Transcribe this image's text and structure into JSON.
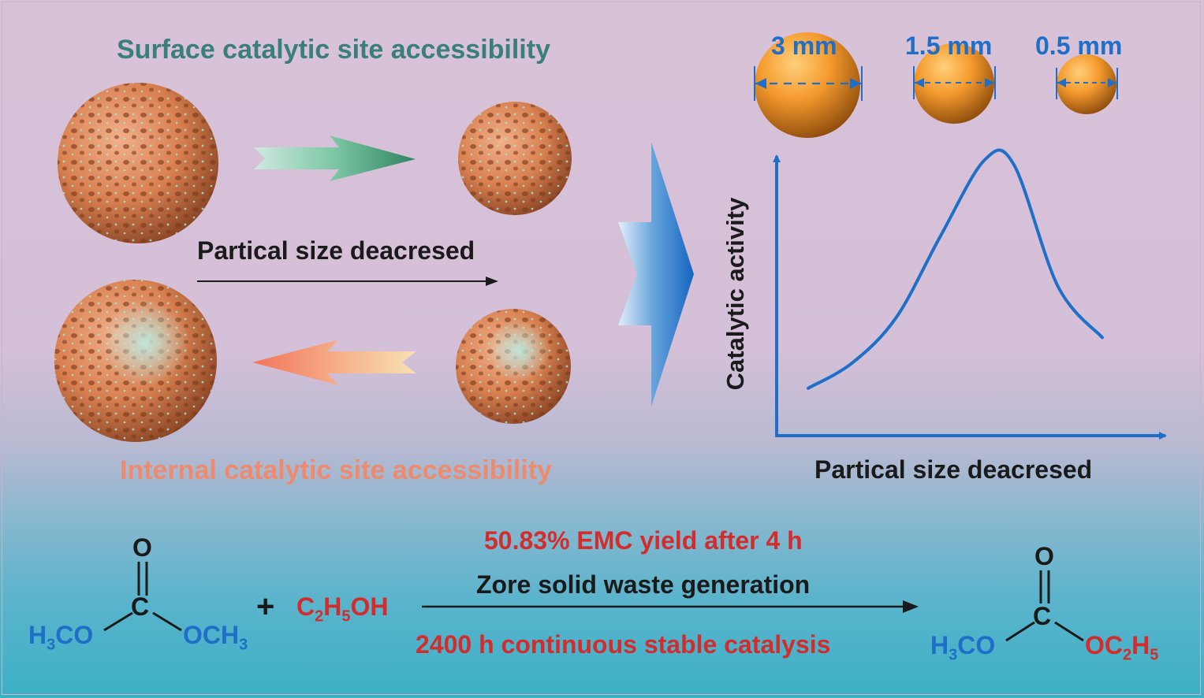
{
  "top_label": "Surface catalytic site accessibility",
  "bottom_label": "Internal catalytic site accessibility",
  "middle_arrow_label": "Partical size deacresed",
  "spheres": [
    {
      "size_label": "3 mm"
    },
    {
      "size_label": "1.5 mm"
    },
    {
      "size_label": "0.5 mm"
    }
  ],
  "chart_data": {
    "type": "line",
    "title": "",
    "xlabel": "Partical size deacresed",
    "ylabel": "Catalytic activity",
    "series": [
      {
        "name": "Catalytic activity",
        "x": [
          0,
          0.15,
          0.3,
          0.45,
          0.6,
          0.7,
          0.85,
          1.0
        ],
        "values": [
          0.1,
          0.2,
          0.38,
          0.7,
          1.0,
          0.98,
          0.5,
          0.3
        ]
      }
    ],
    "ticks": "none"
  },
  "reaction": {
    "reactant1": {
      "top": "O",
      "mid": "C",
      "left": "H",
      "left_sub": "3",
      "left_tail": "CO",
      "right": "OCH",
      "right_sub": "3"
    },
    "plus": "+",
    "reactant2": {
      "c": "C",
      "c_sub": "2",
      "h": "H",
      "h_sub": "5",
      "oh": "OH"
    },
    "line1": "50.83% EMC yield after 4 h",
    "line2": "Zore solid waste generation",
    "line3": "2400 h continuous stable catalysis",
    "product": {
      "top": "O",
      "mid": "C",
      "left": "H",
      "left_sub": "3",
      "left_tail": "CO",
      "right": "OC",
      "right_sub1": "2",
      "right_h": "H",
      "right_sub2": "5"
    }
  },
  "colors": {
    "teal_text": "#3a7f78",
    "salmon_text": "#ee8a6e",
    "red_text": "#d22c2c",
    "blue": "#1f6fc8",
    "dark": "#1a1a1a",
    "sphere_orange": "#f59a2e",
    "porous": "#d98050"
  }
}
